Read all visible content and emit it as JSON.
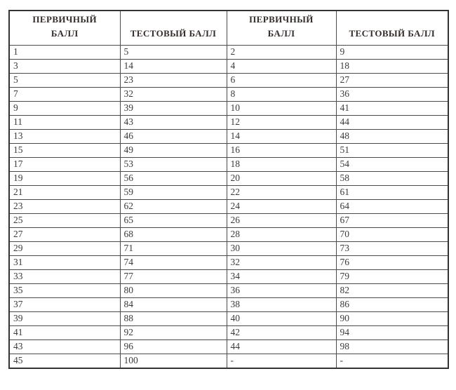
{
  "colors": {
    "border": "#4a4a4a",
    "outer_border": "#333333",
    "text": "#3b3b3b",
    "header_text": "#332c2a",
    "background": "#ffffff"
  },
  "table": {
    "headers": [
      [
        "ПЕРВИЧНЫЙ",
        "БАЛЛ"
      ],
      [
        "ТЕСТОВЫЙ БАЛЛ"
      ],
      [
        "ПЕРВИЧНЫЙ",
        "БАЛЛ"
      ],
      [
        "ТЕСТОВЫЙ БАЛЛ"
      ]
    ],
    "rows": [
      [
        "1",
        "5",
        "2",
        "9"
      ],
      [
        "3",
        "14",
        "4",
        "18"
      ],
      [
        "5",
        "23",
        "6",
        "27"
      ],
      [
        "7",
        "32",
        "8",
        "36"
      ],
      [
        "9",
        "39",
        "10",
        "41"
      ],
      [
        "11",
        "43",
        "12",
        "44"
      ],
      [
        "13",
        "46",
        "14",
        "48"
      ],
      [
        "15",
        "49",
        "16",
        "51"
      ],
      [
        "17",
        "53",
        "18",
        "54"
      ],
      [
        "19",
        "56",
        "20",
        "58"
      ],
      [
        "21",
        "59",
        "22",
        "61"
      ],
      [
        "23",
        "62",
        "24",
        "64"
      ],
      [
        "25",
        "65",
        "26",
        "67"
      ],
      [
        "27",
        "68",
        "28",
        "70"
      ],
      [
        "29",
        "71",
        "30",
        "73"
      ],
      [
        "31",
        "74",
        "32",
        "76"
      ],
      [
        "33",
        "77",
        "34",
        "79"
      ],
      [
        "35",
        "80",
        "36",
        "82"
      ],
      [
        "37",
        "84",
        "38",
        "86"
      ],
      [
        "39",
        "88",
        "40",
        "90"
      ],
      [
        "41",
        "92",
        "42",
        "94"
      ],
      [
        "43",
        "96",
        "44",
        "98"
      ],
      [
        "45",
        "100",
        "-",
        "-"
      ]
    ]
  }
}
